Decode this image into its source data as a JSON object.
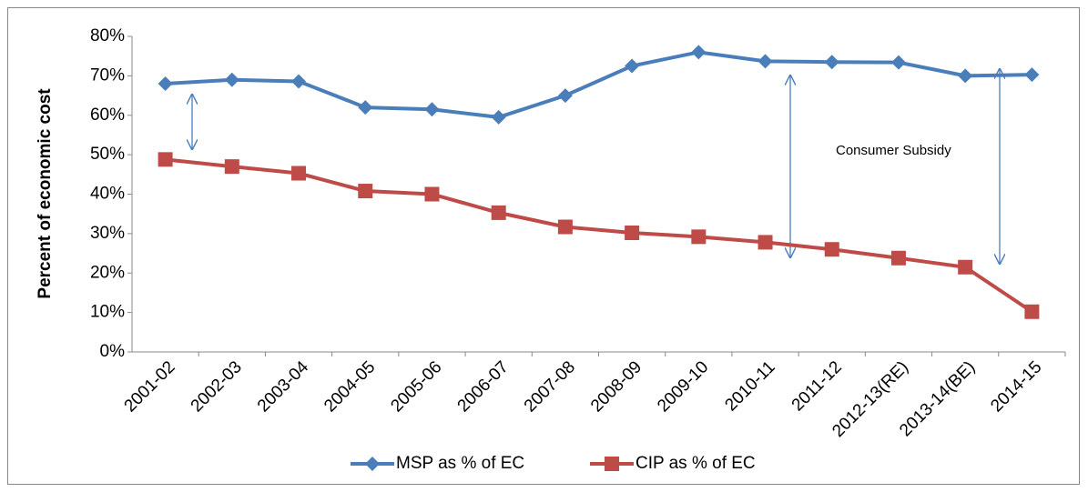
{
  "chart_data": {
    "type": "line",
    "y_label": "Percent of economic cost",
    "categories": [
      "2001-02",
      "2002-03",
      "2003-04",
      "2004-05",
      "2005-06",
      "2006-07",
      "2007-08",
      "2008-09",
      "2009-10",
      "2010-11",
      "2011-12",
      "2012-13(RE)",
      "2013-14(BE)",
      "2014-15"
    ],
    "series": [
      {
        "name": "MSP as % of EC",
        "color": "#4a7ebb",
        "marker": "diamond",
        "values": [
          68,
          69,
          68.6,
          62,
          61.5,
          59.5,
          65,
          72.5,
          76,
          73.7,
          73.5,
          73.4,
          70,
          70.3
        ]
      },
      {
        "name": "CIP as % of EC",
        "color": "#be4b48",
        "marker": "square",
        "values": [
          48.8,
          47,
          45.3,
          40.8,
          40,
          35.3,
          31.7,
          30.2,
          29.2,
          27.8,
          26,
          23.8,
          21.5,
          10.2
        ]
      }
    ],
    "ylim": [
      0,
      80
    ],
    "yticks": [
      {
        "value": 0,
        "label": "0%"
      },
      {
        "value": 10,
        "label": "10%"
      },
      {
        "value": 20,
        "label": "20%"
      },
      {
        "value": 30,
        "label": "30%"
      },
      {
        "value": 40,
        "label": "40%"
      },
      {
        "value": 50,
        "label": "50%"
      },
      {
        "value": 60,
        "label": "60%"
      },
      {
        "value": 70,
        "label": "70%"
      },
      {
        "value": 80,
        "label": "80%"
      }
    ],
    "grid": false,
    "legend": "bottom",
    "annotation": "Consumer Subsidy"
  }
}
